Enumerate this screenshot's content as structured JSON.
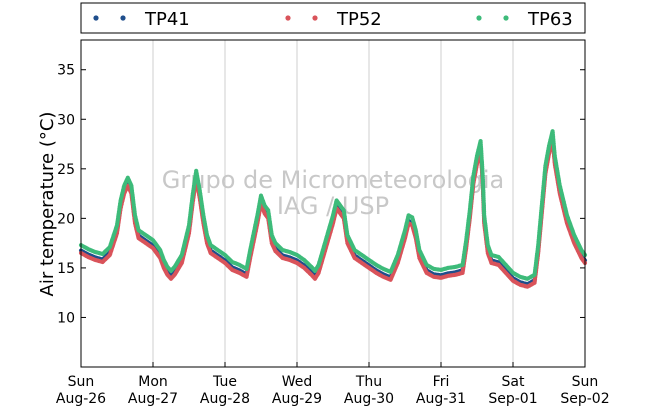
{
  "chart_data": {
    "type": "scatter",
    "ylabel": "Air temperature (°C)",
    "xlabel": "",
    "ylim": [
      5,
      38
    ],
    "yticks": [
      10,
      15,
      20,
      25,
      30,
      35
    ],
    "x_unit": "days since Sun Aug-26 00:00",
    "xlim": [
      0,
      7
    ],
    "x_tick_labels": [
      {
        "day": "Sun",
        "date": "Aug-26"
      },
      {
        "day": "Mon",
        "date": "Aug-27"
      },
      {
        "day": "Tue",
        "date": "Aug-28"
      },
      {
        "day": "Wed",
        "date": "Aug-29"
      },
      {
        "day": "Thu",
        "date": "Aug-30"
      },
      {
        "day": "Fri",
        "date": "Aug-31"
      },
      {
        "day": "Sat",
        "date": "Sep-01"
      },
      {
        "day": "Sun",
        "date": "Sep-02"
      }
    ],
    "grid": "vertical",
    "legend_position": "top",
    "watermark": [
      "Grupo de Micrometeorologia",
      "IAG / USP"
    ],
    "series": [
      {
        "name": "TP41",
        "color": "#1f4e8c",
        "offset": -0.25,
        "values": [
          [
            0.0,
            17.0
          ],
          [
            0.1,
            16.6
          ],
          [
            0.2,
            16.3
          ],
          [
            0.3,
            16.1
          ],
          [
            0.4,
            16.8
          ],
          [
            0.5,
            19.0
          ],
          [
            0.55,
            21.5
          ],
          [
            0.6,
            23.0
          ],
          [
            0.65,
            23.8
          ],
          [
            0.7,
            23.0
          ],
          [
            0.75,
            20.0
          ],
          [
            0.8,
            18.5
          ],
          [
            0.9,
            18.0
          ],
          [
            1.0,
            17.5
          ],
          [
            1.1,
            16.5
          ],
          [
            1.15,
            15.5
          ],
          [
            1.2,
            14.8
          ],
          [
            1.25,
            14.4
          ],
          [
            1.3,
            14.8
          ],
          [
            1.4,
            16.0
          ],
          [
            1.5,
            19.0
          ],
          [
            1.55,
            22.0
          ],
          [
            1.6,
            24.5
          ],
          [
            1.65,
            22.5
          ],
          [
            1.7,
            20.0
          ],
          [
            1.75,
            18.0
          ],
          [
            1.8,
            17.0
          ],
          [
            1.9,
            16.5
          ],
          [
            2.0,
            16.0
          ],
          [
            2.1,
            15.3
          ],
          [
            2.2,
            15.0
          ],
          [
            2.3,
            14.6
          ],
          [
            2.35,
            16.5
          ],
          [
            2.45,
            20.0
          ],
          [
            2.5,
            22.0
          ],
          [
            2.55,
            21.0
          ],
          [
            2.6,
            20.5
          ],
          [
            2.65,
            18.0
          ],
          [
            2.7,
            17.2
          ],
          [
            2.8,
            16.5
          ],
          [
            2.9,
            16.3
          ],
          [
            3.0,
            16.0
          ],
          [
            3.1,
            15.5
          ],
          [
            3.2,
            14.8
          ],
          [
            3.25,
            14.4
          ],
          [
            3.3,
            15.0
          ],
          [
            3.4,
            17.5
          ],
          [
            3.5,
            20.0
          ],
          [
            3.55,
            21.5
          ],
          [
            3.6,
            21.0
          ],
          [
            3.65,
            20.5
          ],
          [
            3.7,
            18.0
          ],
          [
            3.8,
            16.5
          ],
          [
            3.9,
            16.0
          ],
          [
            4.0,
            15.5
          ],
          [
            4.1,
            15.0
          ],
          [
            4.2,
            14.6
          ],
          [
            4.3,
            14.3
          ],
          [
            4.4,
            16.0
          ],
          [
            4.5,
            18.5
          ],
          [
            4.55,
            20.0
          ],
          [
            4.6,
            19.8
          ],
          [
            4.65,
            18.5
          ],
          [
            4.7,
            16.5
          ],
          [
            4.8,
            15.0
          ],
          [
            4.9,
            14.6
          ],
          [
            5.0,
            14.5
          ],
          [
            5.1,
            14.7
          ],
          [
            5.2,
            14.8
          ],
          [
            5.3,
            15.0
          ],
          [
            5.35,
            17.5
          ],
          [
            5.4,
            20.5
          ],
          [
            5.45,
            24.0
          ],
          [
            5.5,
            26.0
          ],
          [
            5.55,
            27.5
          ],
          [
            5.58,
            24.0
          ],
          [
            5.6,
            20.0
          ],
          [
            5.65,
            17.0
          ],
          [
            5.7,
            16.0
          ],
          [
            5.8,
            15.8
          ],
          [
            5.9,
            15.0
          ],
          [
            6.0,
            14.2
          ],
          [
            6.1,
            13.8
          ],
          [
            6.2,
            13.6
          ],
          [
            6.3,
            14.0
          ],
          [
            6.35,
            17.0
          ],
          [
            6.4,
            21.0
          ],
          [
            6.45,
            25.0
          ],
          [
            6.5,
            27.0
          ],
          [
            6.55,
            28.5
          ],
          [
            6.58,
            26.0
          ],
          [
            6.65,
            23.0
          ],
          [
            6.75,
            20.0
          ],
          [
            6.85,
            18.0
          ],
          [
            6.95,
            16.5
          ],
          [
            7.0,
            16.0
          ]
        ]
      },
      {
        "name": "TP52",
        "color": "#d9535a",
        "offset": -0.5,
        "values": [
          [
            0.0,
            17.0
          ],
          [
            0.1,
            16.6
          ],
          [
            0.2,
            16.3
          ],
          [
            0.3,
            16.1
          ],
          [
            0.4,
            16.8
          ],
          [
            0.5,
            19.0
          ],
          [
            0.55,
            21.5
          ],
          [
            0.6,
            23.0
          ],
          [
            0.65,
            23.8
          ],
          [
            0.7,
            23.0
          ],
          [
            0.75,
            20.0
          ],
          [
            0.8,
            18.5
          ],
          [
            0.9,
            18.0
          ],
          [
            1.0,
            17.5
          ],
          [
            1.1,
            16.5
          ],
          [
            1.15,
            15.5
          ],
          [
            1.2,
            14.8
          ],
          [
            1.25,
            14.4
          ],
          [
            1.3,
            14.8
          ],
          [
            1.4,
            16.0
          ],
          [
            1.5,
            19.0
          ],
          [
            1.55,
            22.0
          ],
          [
            1.6,
            24.5
          ],
          [
            1.65,
            22.5
          ],
          [
            1.7,
            20.0
          ],
          [
            1.75,
            18.0
          ],
          [
            1.8,
            17.0
          ],
          [
            1.9,
            16.5
          ],
          [
            2.0,
            16.0
          ],
          [
            2.1,
            15.3
          ],
          [
            2.2,
            15.0
          ],
          [
            2.3,
            14.6
          ],
          [
            2.35,
            16.5
          ],
          [
            2.45,
            20.0
          ],
          [
            2.5,
            22.0
          ],
          [
            2.55,
            21.0
          ],
          [
            2.6,
            20.5
          ],
          [
            2.65,
            18.0
          ],
          [
            2.7,
            17.2
          ],
          [
            2.8,
            16.5
          ],
          [
            2.9,
            16.3
          ],
          [
            3.0,
            16.0
          ],
          [
            3.1,
            15.5
          ],
          [
            3.2,
            14.8
          ],
          [
            3.25,
            14.4
          ],
          [
            3.3,
            15.0
          ],
          [
            3.4,
            17.5
          ],
          [
            3.5,
            20.0
          ],
          [
            3.55,
            21.5
          ],
          [
            3.6,
            21.0
          ],
          [
            3.65,
            20.5
          ],
          [
            3.7,
            18.0
          ],
          [
            3.8,
            16.5
          ],
          [
            3.9,
            16.0
          ],
          [
            4.0,
            15.5
          ],
          [
            4.1,
            15.0
          ],
          [
            4.2,
            14.6
          ],
          [
            4.3,
            14.3
          ],
          [
            4.4,
            16.0
          ],
          [
            4.5,
            18.5
          ],
          [
            4.55,
            20.0
          ],
          [
            4.6,
            19.8
          ],
          [
            4.65,
            18.5
          ],
          [
            4.7,
            16.5
          ],
          [
            4.8,
            15.0
          ],
          [
            4.9,
            14.6
          ],
          [
            5.0,
            14.5
          ],
          [
            5.1,
            14.7
          ],
          [
            5.2,
            14.8
          ],
          [
            5.3,
            15.0
          ],
          [
            5.35,
            17.5
          ],
          [
            5.4,
            20.5
          ],
          [
            5.45,
            24.0
          ],
          [
            5.5,
            26.0
          ],
          [
            5.55,
            27.5
          ],
          [
            5.58,
            24.0
          ],
          [
            5.6,
            20.0
          ],
          [
            5.65,
            17.0
          ],
          [
            5.7,
            16.0
          ],
          [
            5.8,
            15.8
          ],
          [
            5.9,
            15.0
          ],
          [
            6.0,
            14.2
          ],
          [
            6.1,
            13.8
          ],
          [
            6.2,
            13.6
          ],
          [
            6.3,
            14.0
          ],
          [
            6.35,
            17.0
          ],
          [
            6.4,
            21.0
          ],
          [
            6.45,
            25.0
          ],
          [
            6.5,
            27.0
          ],
          [
            6.55,
            28.5
          ],
          [
            6.58,
            26.0
          ],
          [
            6.65,
            23.0
          ],
          [
            6.75,
            20.0
          ],
          [
            6.85,
            18.0
          ],
          [
            6.95,
            16.5
          ],
          [
            7.0,
            16.0
          ]
        ]
      },
      {
        "name": "TP63",
        "color": "#3dbb7a",
        "offset": 0.3,
        "values": [
          [
            0.0,
            17.0
          ],
          [
            0.1,
            16.6
          ],
          [
            0.2,
            16.3
          ],
          [
            0.3,
            16.1
          ],
          [
            0.4,
            16.8
          ],
          [
            0.5,
            19.0
          ],
          [
            0.55,
            21.5
          ],
          [
            0.6,
            23.0
          ],
          [
            0.65,
            23.8
          ],
          [
            0.7,
            23.0
          ],
          [
            0.75,
            20.0
          ],
          [
            0.8,
            18.5
          ],
          [
            0.9,
            18.0
          ],
          [
            1.0,
            17.5
          ],
          [
            1.1,
            16.5
          ],
          [
            1.15,
            15.5
          ],
          [
            1.2,
            14.8
          ],
          [
            1.25,
            14.4
          ],
          [
            1.3,
            14.8
          ],
          [
            1.4,
            16.0
          ],
          [
            1.5,
            19.0
          ],
          [
            1.55,
            22.0
          ],
          [
            1.6,
            24.5
          ],
          [
            1.65,
            22.5
          ],
          [
            1.7,
            20.0
          ],
          [
            1.75,
            18.0
          ],
          [
            1.8,
            17.0
          ],
          [
            1.9,
            16.5
          ],
          [
            2.0,
            16.0
          ],
          [
            2.1,
            15.3
          ],
          [
            2.2,
            15.0
          ],
          [
            2.3,
            14.6
          ],
          [
            2.35,
            16.5
          ],
          [
            2.45,
            20.0
          ],
          [
            2.5,
            22.0
          ],
          [
            2.55,
            21.0
          ],
          [
            2.6,
            20.5
          ],
          [
            2.65,
            18.0
          ],
          [
            2.7,
            17.2
          ],
          [
            2.8,
            16.5
          ],
          [
            2.9,
            16.3
          ],
          [
            3.0,
            16.0
          ],
          [
            3.1,
            15.5
          ],
          [
            3.2,
            14.8
          ],
          [
            3.25,
            14.4
          ],
          [
            3.3,
            15.0
          ],
          [
            3.4,
            17.5
          ],
          [
            3.5,
            20.0
          ],
          [
            3.55,
            21.5
          ],
          [
            3.6,
            21.0
          ],
          [
            3.65,
            20.5
          ],
          [
            3.7,
            18.0
          ],
          [
            3.8,
            16.5
          ],
          [
            3.9,
            16.0
          ],
          [
            4.0,
            15.5
          ],
          [
            4.1,
            15.0
          ],
          [
            4.2,
            14.6
          ],
          [
            4.3,
            14.3
          ],
          [
            4.4,
            16.0
          ],
          [
            4.5,
            18.5
          ],
          [
            4.55,
            20.0
          ],
          [
            4.6,
            19.8
          ],
          [
            4.65,
            18.5
          ],
          [
            4.7,
            16.5
          ],
          [
            4.8,
            15.0
          ],
          [
            4.9,
            14.6
          ],
          [
            5.0,
            14.5
          ],
          [
            5.1,
            14.7
          ],
          [
            5.2,
            14.8
          ],
          [
            5.3,
            15.0
          ],
          [
            5.35,
            17.5
          ],
          [
            5.4,
            20.5
          ],
          [
            5.45,
            24.0
          ],
          [
            5.5,
            26.0
          ],
          [
            5.55,
            27.5
          ],
          [
            5.58,
            24.0
          ],
          [
            5.6,
            20.0
          ],
          [
            5.65,
            17.0
          ],
          [
            5.7,
            16.0
          ],
          [
            5.8,
            15.8
          ],
          [
            5.9,
            15.0
          ],
          [
            6.0,
            14.2
          ],
          [
            6.1,
            13.8
          ],
          [
            6.2,
            13.6
          ],
          [
            6.3,
            14.0
          ],
          [
            6.35,
            17.0
          ],
          [
            6.4,
            21.0
          ],
          [
            6.45,
            25.0
          ],
          [
            6.5,
            27.0
          ],
          [
            6.55,
            28.5
          ],
          [
            6.58,
            26.0
          ],
          [
            6.65,
            23.0
          ],
          [
            6.75,
            20.0
          ],
          [
            6.85,
            18.0
          ],
          [
            6.95,
            16.5
          ],
          [
            7.0,
            16.0
          ]
        ]
      }
    ]
  }
}
